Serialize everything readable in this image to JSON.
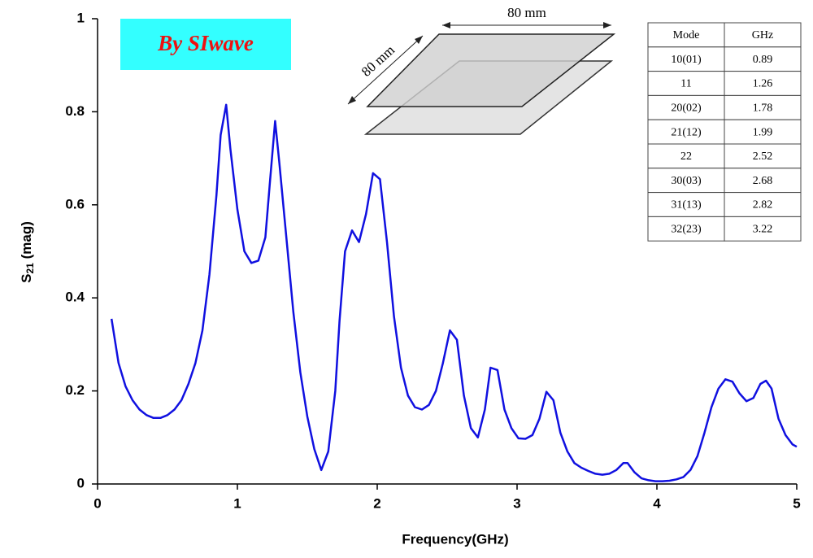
{
  "chart_data": {
    "type": "line",
    "x_label": "Frequency(GHz)",
    "y_label": {
      "main": "S",
      "sub": "21",
      "rest": " (mag)"
    },
    "annotation": "By SIwave",
    "color": "#1010e0",
    "xlim": [
      0,
      5
    ],
    "xticks": [
      0,
      1,
      2,
      3,
      4,
      5
    ],
    "ylim": [
      0,
      1
    ],
    "yticks": [
      0,
      0.2,
      0.4,
      0.6,
      0.8,
      1
    ],
    "x": [
      0.1,
      0.15,
      0.2,
      0.25,
      0.3,
      0.35,
      0.4,
      0.45,
      0.5,
      0.55,
      0.6,
      0.65,
      0.7,
      0.75,
      0.8,
      0.85,
      0.88,
      0.92,
      0.95,
      1.0,
      1.05,
      1.1,
      1.15,
      1.2,
      1.23,
      1.27,
      1.3,
      1.35,
      1.4,
      1.45,
      1.5,
      1.55,
      1.6,
      1.65,
      1.7,
      1.73,
      1.77,
      1.82,
      1.87,
      1.92,
      1.97,
      2.02,
      2.07,
      2.12,
      2.17,
      2.22,
      2.27,
      2.32,
      2.37,
      2.42,
      2.47,
      2.52,
      2.57,
      2.62,
      2.67,
      2.72,
      2.77,
      2.81,
      2.86,
      2.91,
      2.96,
      3.01,
      3.06,
      3.11,
      3.16,
      3.21,
      3.26,
      3.31,
      3.36,
      3.41,
      3.46,
      3.51,
      3.56,
      3.61,
      3.66,
      3.71,
      3.76,
      3.79,
      3.84,
      3.89,
      3.94,
      3.99,
      4.04,
      4.09,
      4.14,
      4.19,
      4.24,
      4.29,
      4.34,
      4.39,
      4.44,
      4.49,
      4.54,
      4.59,
      4.64,
      4.69,
      4.74,
      4.78,
      4.82,
      4.87,
      4.92,
      4.97,
      5.0
    ],
    "values": [
      0.355,
      0.26,
      0.21,
      0.18,
      0.16,
      0.148,
      0.142,
      0.142,
      0.148,
      0.16,
      0.18,
      0.215,
      0.26,
      0.33,
      0.45,
      0.62,
      0.75,
      0.815,
      0.72,
      0.59,
      0.5,
      0.475,
      0.48,
      0.53,
      0.64,
      0.78,
      0.69,
      0.53,
      0.37,
      0.24,
      0.145,
      0.075,
      0.03,
      0.07,
      0.2,
      0.35,
      0.5,
      0.545,
      0.52,
      0.58,
      0.668,
      0.655,
      0.52,
      0.36,
      0.25,
      0.19,
      0.165,
      0.16,
      0.17,
      0.2,
      0.26,
      0.33,
      0.31,
      0.19,
      0.12,
      0.1,
      0.16,
      0.25,
      0.245,
      0.16,
      0.12,
      0.098,
      0.097,
      0.105,
      0.14,
      0.198,
      0.18,
      0.11,
      0.07,
      0.045,
      0.035,
      0.028,
      0.022,
      0.02,
      0.022,
      0.03,
      0.045,
      0.045,
      0.025,
      0.012,
      0.008,
      0.006,
      0.006,
      0.007,
      0.01,
      0.015,
      0.03,
      0.06,
      0.11,
      0.165,
      0.205,
      0.225,
      0.22,
      0.195,
      0.178,
      0.185,
      0.215,
      0.222,
      0.205,
      0.14,
      0.105,
      0.085,
      0.08
    ]
  },
  "diagram": {
    "width_label": "80 mm",
    "depth_label": "80 mm"
  },
  "table": {
    "header": [
      "Mode",
      "GHz"
    ],
    "rows": [
      [
        "10(01)",
        "0.89"
      ],
      [
        "11",
        "1.26"
      ],
      [
        "20(02)",
        "1.78"
      ],
      [
        "21(12)",
        "1.99"
      ],
      [
        "22",
        "2.52"
      ],
      [
        "30(03)",
        "2.68"
      ],
      [
        "31(13)",
        "2.82"
      ],
      [
        "32(23)",
        "3.22"
      ]
    ]
  }
}
